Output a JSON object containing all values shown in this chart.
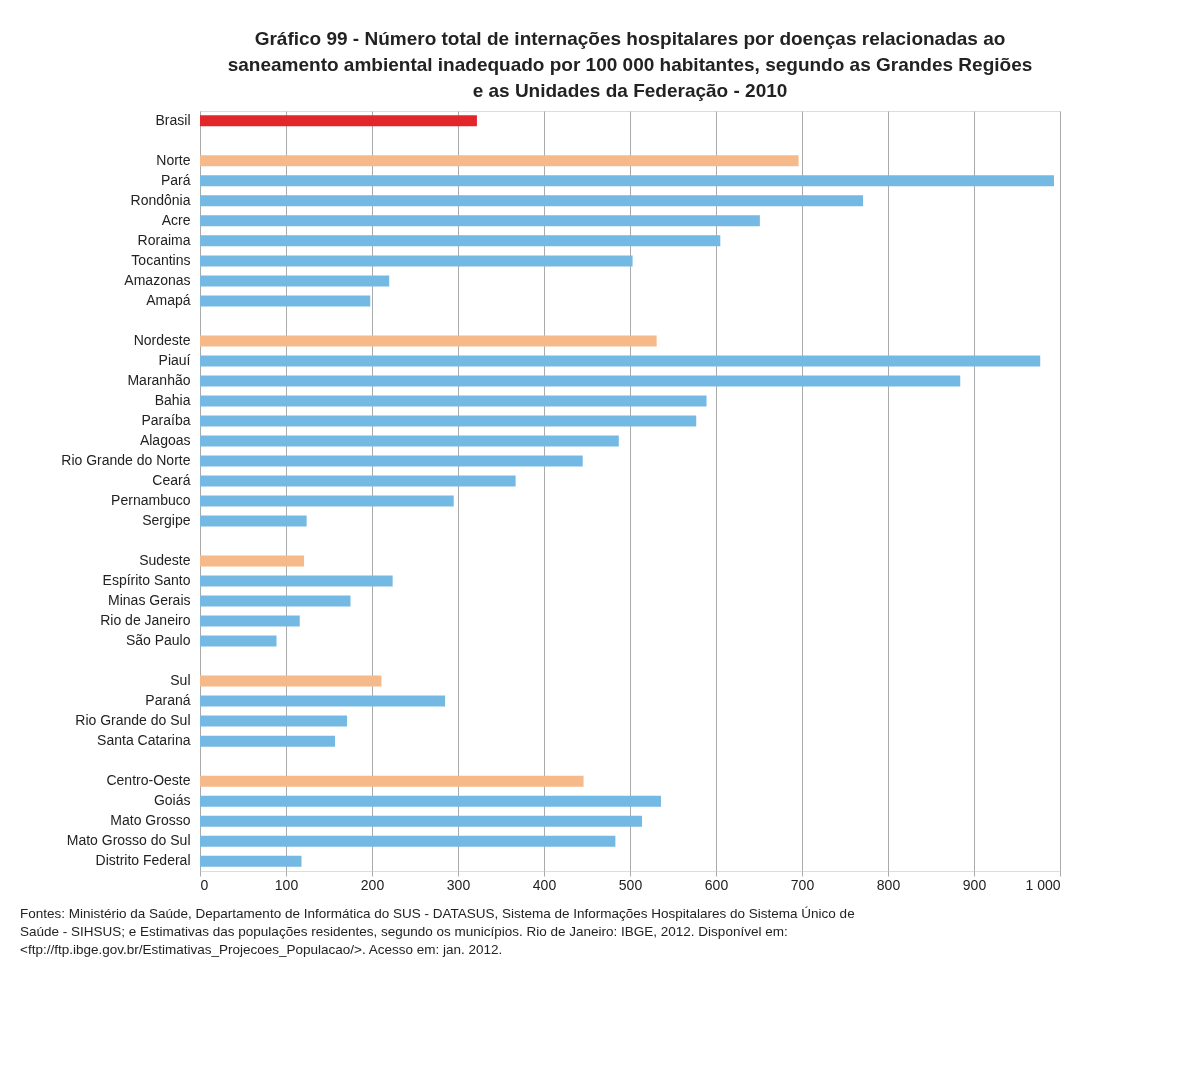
{
  "chart_data": {
    "type": "bar",
    "orientation": "horizontal",
    "title": "Gráfico 99 - Número total de internações hospitalares por doenças relacionadas ao saneamento ambiental inadequado por 100 000 habitantes, segundo as Grandes Regiões e as Unidades da Federação - 2010",
    "categories": [
      "Brasil",
      null,
      "Norte",
      "Pará",
      "Rondônia",
      "Acre",
      "Roraima",
      "Tocantins",
      "Amazonas",
      "Amapá",
      null,
      "Nordeste",
      "Piauí",
      "Maranhão",
      "Bahia",
      "Paraíba",
      "Alagoas",
      "Rio Grande do Norte",
      "Ceará",
      "Pernambuco",
      "Sergipe",
      null,
      "Sudeste",
      "Espírito Santo",
      "Minas Gerais",
      "Rio de Janeiro",
      "São Paulo",
      null,
      "Sul",
      "Paraná",
      "Rio Grande do Sul",
      "Santa Catarina",
      null,
      "Centro-Oeste",
      "Goiás",
      "Mato Grosso",
      "Mato Grosso do Sul",
      "Distrito Federal"
    ],
    "values": [
      322,
      null,
      696,
      993,
      771,
      651,
      605,
      503,
      220,
      198,
      null,
      531,
      977,
      884,
      589,
      577,
      487,
      445,
      367,
      295,
      124,
      null,
      121,
      224,
      175,
      116,
      89,
      null,
      211,
      285,
      171,
      157,
      null,
      446,
      536,
      514,
      483,
      118
    ],
    "colors": [
      "#e3262b",
      null,
      "#f6b98a",
      "#74b9e3",
      "#74b9e3",
      "#74b9e3",
      "#74b9e3",
      "#74b9e3",
      "#74b9e3",
      "#74b9e3",
      null,
      "#f6b98a",
      "#74b9e3",
      "#74b9e3",
      "#74b9e3",
      "#74b9e3",
      "#74b9e3",
      "#74b9e3",
      "#74b9e3",
      "#74b9e3",
      "#74b9e3",
      null,
      "#f6b98a",
      "#74b9e3",
      "#74b9e3",
      "#74b9e3",
      "#74b9e3",
      null,
      "#f6b98a",
      "#74b9e3",
      "#74b9e3",
      "#74b9e3",
      null,
      "#f6b98a",
      "#74b9e3",
      "#74b9e3",
      "#74b9e3",
      "#74b9e3"
    ],
    "xlim": [
      0,
      1000
    ],
    "xticks": [
      0,
      100,
      200,
      300,
      400,
      500,
      600,
      700,
      800,
      900,
      {
        "value": 1000,
        "label": "1 000"
      }
    ],
    "grid": "x",
    "annotations": [
      "Fontes: Ministério da Saúde, Departamento de Informática do SUS - DATASUS, Sistema de Informações Hospitalares do Sistema Único de Saúde - SIHSUS; e Estimativas das populações residentes, segundo os municípios. Rio de Janeiro: IBGE, 2012. Disponível em: <ftp://ftp.ibge.gov.br/Estimativas_Projecoes_Populacao/>. Acesso em: jan. 2012."
    ]
  }
}
